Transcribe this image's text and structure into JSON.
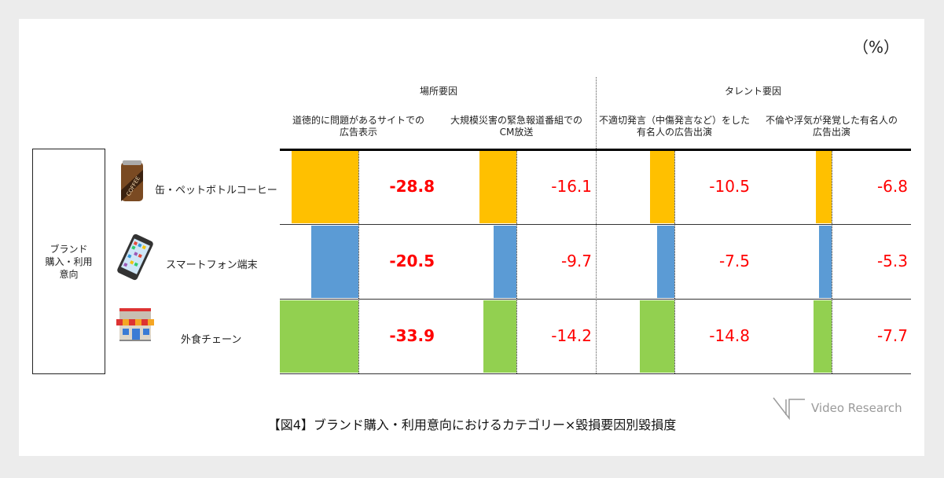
{
  "unit_label": "（%）",
  "left_label": "ブランド\n購入・利用\n意向",
  "caption": "【図4】ブランド購入・利用意向におけるカテゴリー×毀損要因別毀損度",
  "logo_text": "Video Research",
  "chart_data": {
    "type": "bar",
    "orientation": "horizontal",
    "groups": [
      {
        "label": "場所要因",
        "columns": [
          0,
          1
        ]
      },
      {
        "label": "タレント要因",
        "columns": [
          2,
          3
        ]
      }
    ],
    "columns": [
      "道徳的に問題があるサイトでの\n広告表示",
      "大規模災害の緊急報道番組での\nCM放送",
      "不適切発言（中傷発言など）をした\n有名人の広告出演",
      "不倫や浮気が発覚した有名人の\n広告出演"
    ],
    "categories": [
      {
        "label": "缶・ペットボトルコーヒー",
        "icon": "coffee-can-icon",
        "color": "#ffc000"
      },
      {
        "label": "スマートフォン端末",
        "icon": "smartphone-icon",
        "color": "#5b9bd5"
      },
      {
        "label": "外食チェーン",
        "icon": "restaurant-icon",
        "color": "#92d050"
      }
    ],
    "values": [
      [
        -28.8,
        -16.1,
        -10.5,
        -6.8
      ],
      [
        -20.5,
        -9.7,
        -7.5,
        -5.3
      ],
      [
        -33.9,
        -14.2,
        -14.8,
        -7.7
      ]
    ],
    "value_labels": [
      [
        "-28.8",
        "-16.1",
        "-10.5",
        "-6.8"
      ],
      [
        "-20.5",
        "-9.7",
        "-7.5",
        "-5.3"
      ],
      [
        "-33.9",
        "-14.2",
        "-14.8",
        "-7.7"
      ]
    ],
    "label_color": "#ff0000"
  }
}
